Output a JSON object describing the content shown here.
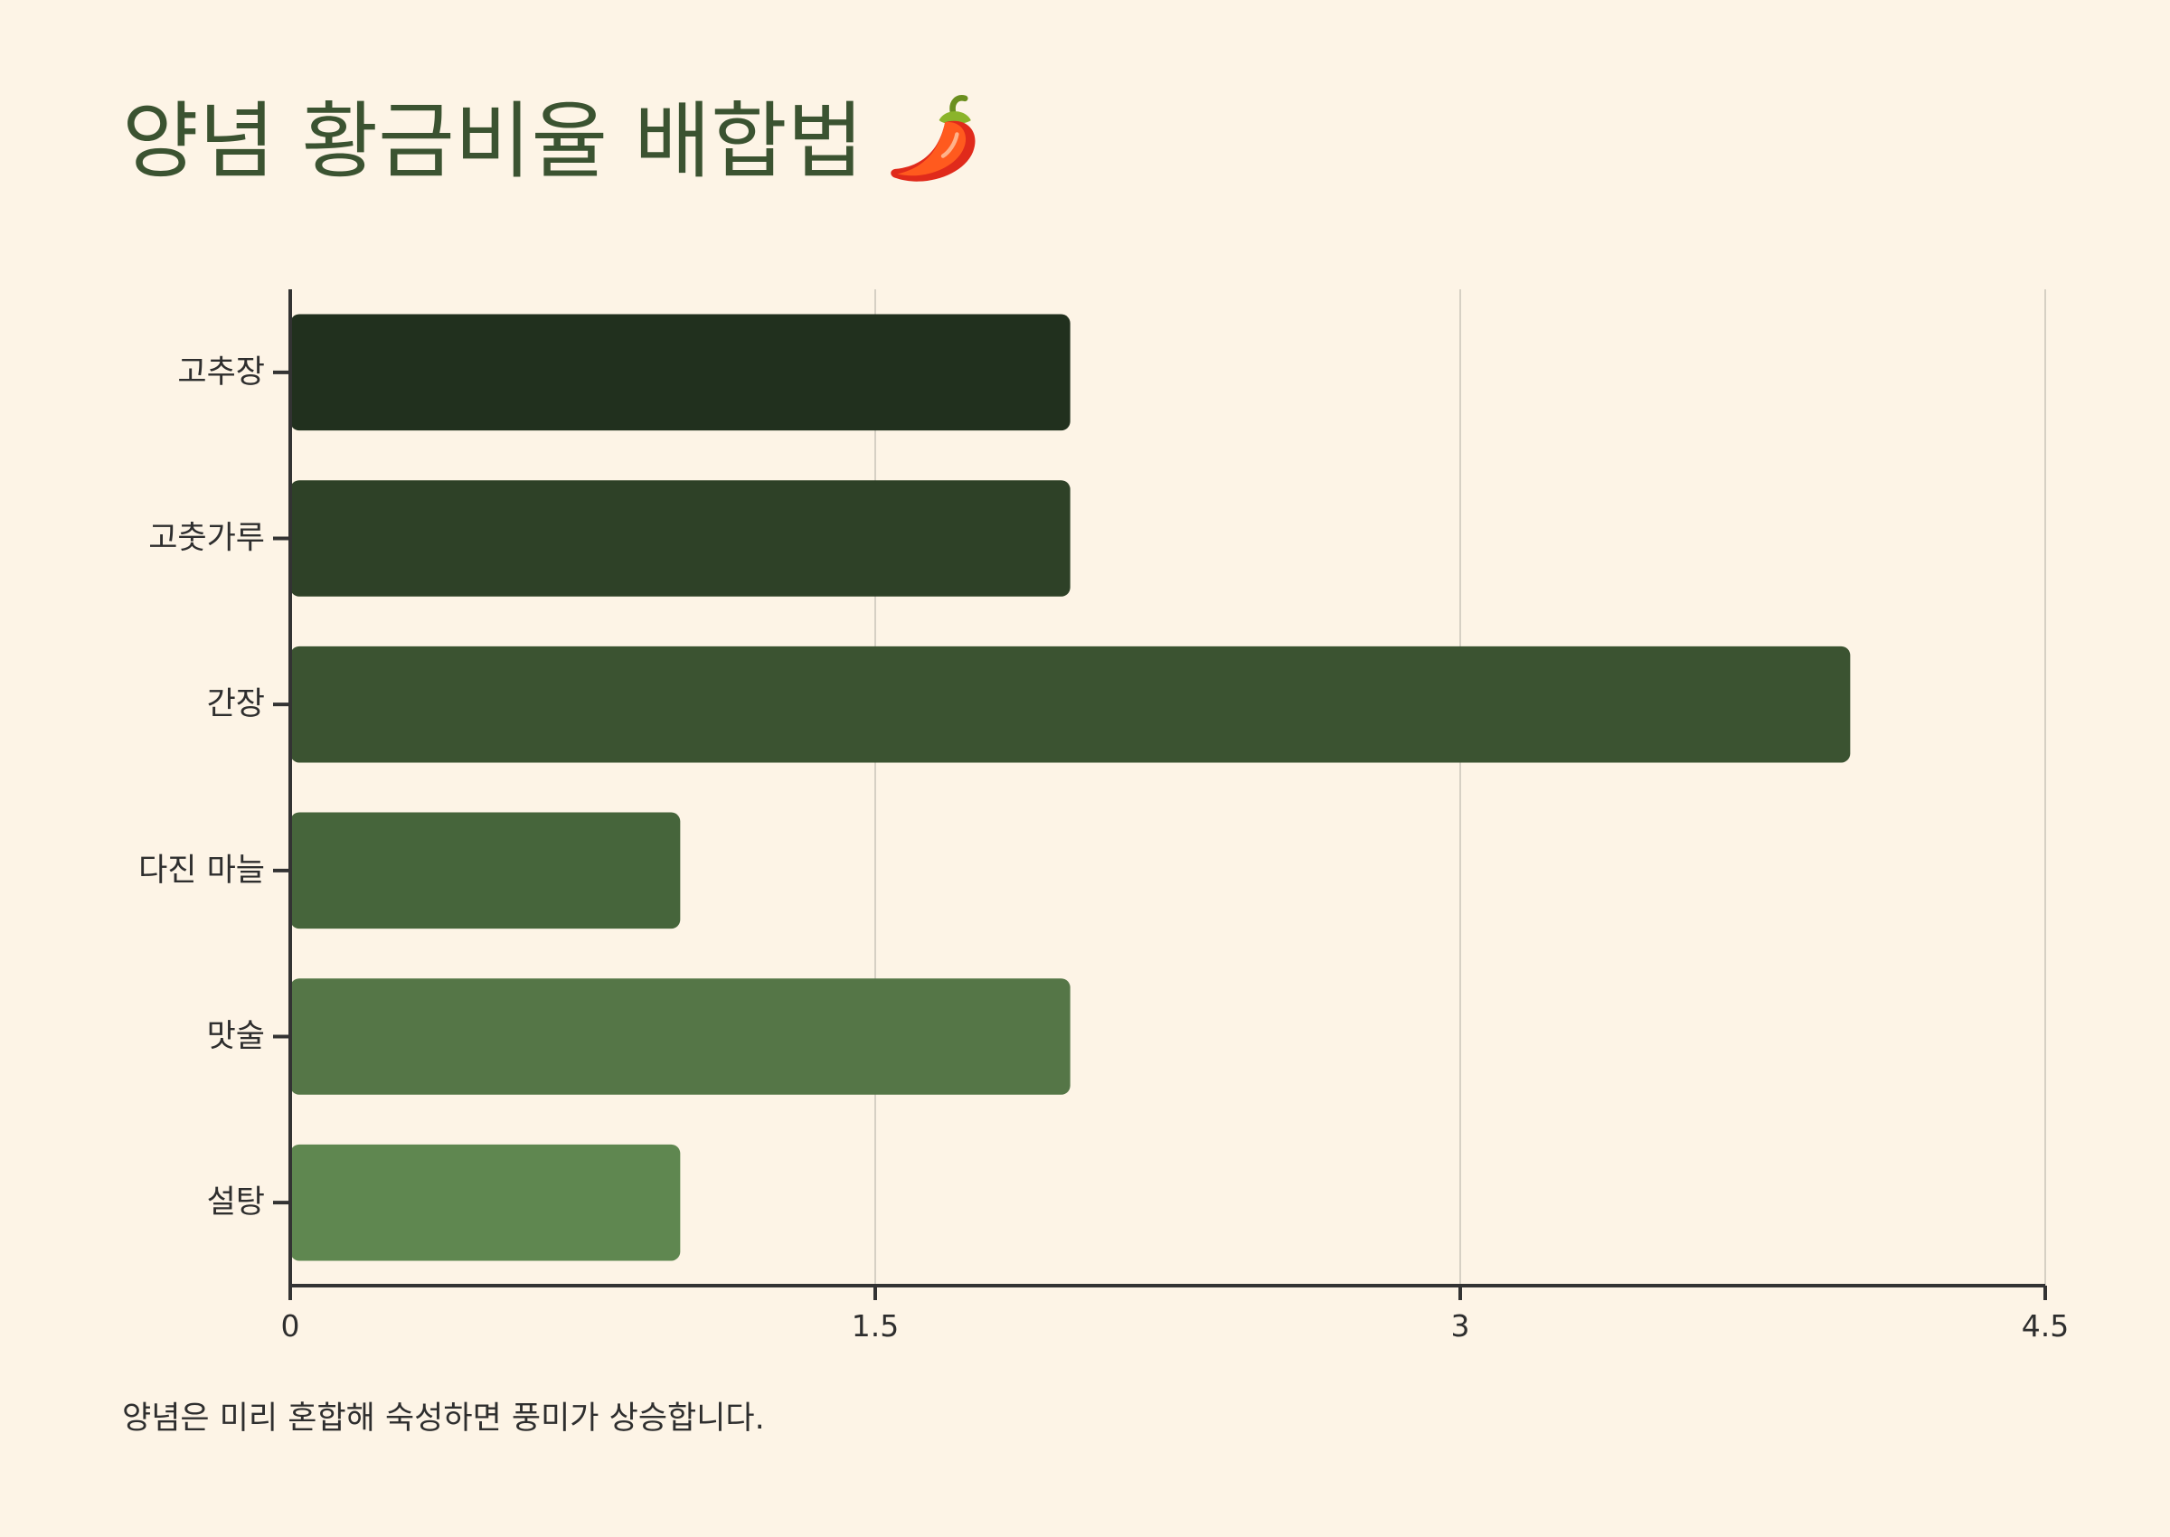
{
  "title": "양념 황금비율 배합법",
  "title_icon": "chili-pepper-icon",
  "footnote": "양념은 미리 혼합해 숙성하면 풍미가 상승합니다.",
  "colors": {
    "background": "#fdf4e6",
    "title": "#3b5331",
    "axis": "#333333",
    "grid": "#d6d0c4",
    "text": "#2e2e2e",
    "bars": [
      "#21301e",
      "#2e4127",
      "#3b5331",
      "#46653b",
      "#557647",
      "#5f8750"
    ]
  },
  "chart_data": {
    "type": "bar",
    "orientation": "horizontal",
    "categories": [
      "고추장",
      "고춧가루",
      "간장",
      "다진 마늘",
      "맛술",
      "설탕"
    ],
    "values": [
      2,
      2,
      4,
      1,
      2,
      1
    ],
    "xlim": [
      0,
      4.5
    ],
    "xticks": [
      0,
      1.5,
      3,
      4.5
    ],
    "xtick_labels": [
      "0",
      "1.5",
      "3",
      "4.5"
    ],
    "grid": "vertical"
  }
}
